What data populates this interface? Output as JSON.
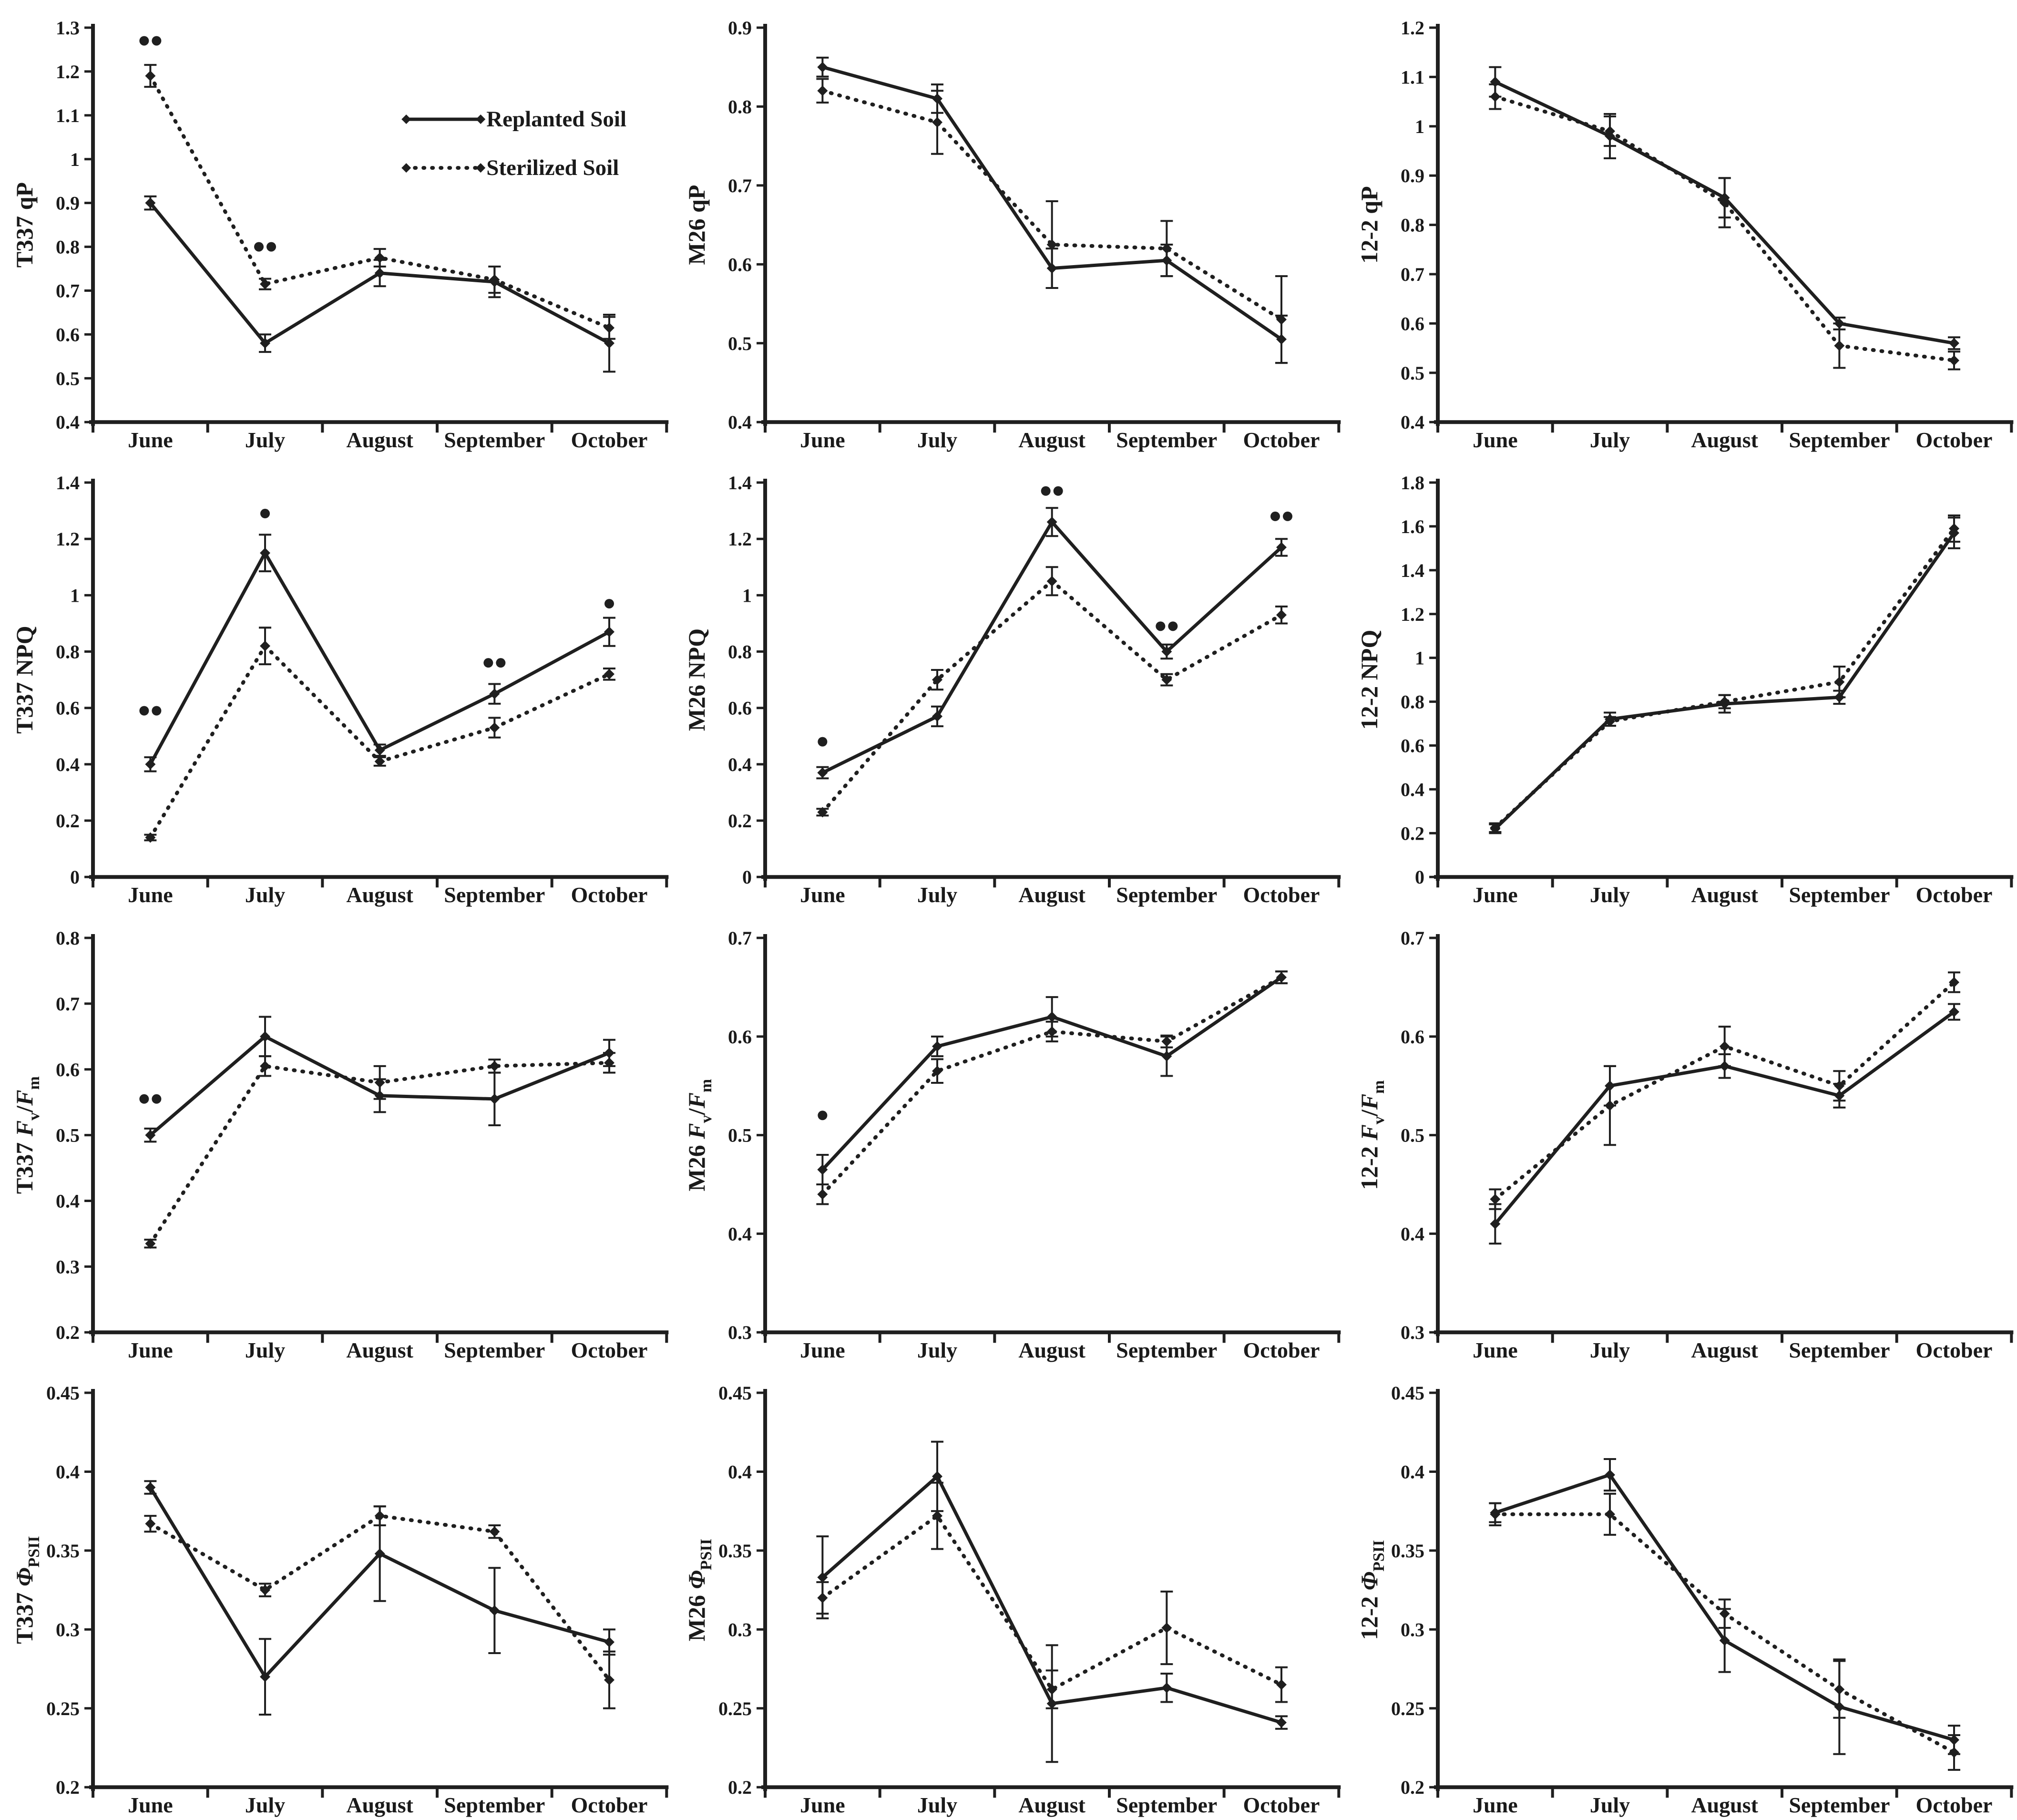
{
  "figure": {
    "background": "#ffffff",
    "ink_color": "#1f1f1f",
    "months": [
      "June",
      "July",
      "August",
      "September",
      "October"
    ],
    "legend": {
      "items": [
        {
          "label": "Replanted Soil",
          "line": "solid"
        },
        {
          "label": "Sterilized Soil",
          "line": "dashed"
        }
      ]
    }
  },
  "chart_data": [
    {
      "id": "t337-qp",
      "type": "line",
      "ylabel_prefix": "T337",
      "ylabel_param": "qP",
      "ylim": [
        0.4,
        1.3
      ],
      "ystep": 0.1,
      "grid": false,
      "legend_position": "upper-right",
      "categories": [
        "June",
        "July",
        "August",
        "September",
        "October"
      ],
      "series": [
        {
          "name": "Replanted Soil",
          "line": "solid",
          "values": [
            0.9,
            0.58,
            0.74,
            0.72,
            0.58
          ],
          "errors": [
            0.015,
            0.02,
            0.03,
            0.035,
            0.065
          ]
        },
        {
          "name": "Sterilized Soil",
          "line": "dashed",
          "values": [
            1.19,
            0.715,
            0.775,
            0.725,
            0.615
          ],
          "errors": [
            0.025,
            0.012,
            0.02,
            0.03,
            0.025
          ]
        }
      ],
      "significance": [
        {
          "month_index": 0,
          "stars": 2,
          "y": 1.27
        },
        {
          "month_index": 1,
          "stars": 2,
          "y": 0.8
        }
      ],
      "show_legend": true
    },
    {
      "id": "m26-qp",
      "type": "line",
      "ylabel_prefix": "M26",
      "ylabel_param": "qP",
      "ylim": [
        0.4,
        0.9
      ],
      "ystep": 0.1,
      "grid": false,
      "categories": [
        "June",
        "July",
        "August",
        "September",
        "October"
      ],
      "series": [
        {
          "name": "Replanted Soil",
          "line": "solid",
          "values": [
            0.85,
            0.81,
            0.595,
            0.605,
            0.505
          ],
          "errors": [
            0.012,
            0.018,
            0.025,
            0.02,
            0.03
          ]
        },
        {
          "name": "Sterilized Soil",
          "line": "dashed",
          "values": [
            0.82,
            0.78,
            0.625,
            0.62,
            0.53
          ],
          "errors": [
            0.015,
            0.04,
            0.055,
            0.035,
            0.055
          ]
        }
      ],
      "significance": [],
      "show_legend": false
    },
    {
      "id": "12-2-qp",
      "type": "line",
      "ylabel_prefix": "12-2",
      "ylabel_param": "qP",
      "ylim": [
        0.4,
        1.2
      ],
      "ystep": 0.1,
      "grid": false,
      "categories": [
        "June",
        "July",
        "August",
        "September",
        "October"
      ],
      "series": [
        {
          "name": "Replanted Soil",
          "line": "solid",
          "values": [
            1.09,
            0.98,
            0.855,
            0.6,
            0.56
          ],
          "errors": [
            0.03,
            0.045,
            0.04,
            0.012,
            0.012
          ]
        },
        {
          "name": "Sterilized Soil",
          "line": "dashed",
          "values": [
            1.06,
            0.99,
            0.845,
            0.555,
            0.525
          ],
          "errors": [
            0.025,
            0.03,
            0.05,
            0.045,
            0.018
          ]
        }
      ],
      "significance": [],
      "show_legend": false
    },
    {
      "id": "t337-npq",
      "type": "line",
      "ylabel_prefix": "T337",
      "ylabel_param": "NPQ",
      "ylim": [
        0,
        1.4
      ],
      "ystep": 0.2,
      "grid": false,
      "categories": [
        "June",
        "July",
        "August",
        "September",
        "October"
      ],
      "series": [
        {
          "name": "Replanted Soil",
          "line": "solid",
          "values": [
            0.4,
            1.15,
            0.45,
            0.65,
            0.87
          ],
          "errors": [
            0.025,
            0.065,
            0.02,
            0.035,
            0.05
          ]
        },
        {
          "name": "Sterilized Soil",
          "line": "dashed",
          "values": [
            0.14,
            0.82,
            0.41,
            0.53,
            0.72
          ],
          "errors": [
            0.01,
            0.065,
            0.015,
            0.035,
            0.02
          ]
        }
      ],
      "significance": [
        {
          "month_index": 0,
          "stars": 2,
          "y": 0.59
        },
        {
          "month_index": 1,
          "stars": 1,
          "y": 1.29
        },
        {
          "month_index": 3,
          "stars": 2,
          "y": 0.76
        },
        {
          "month_index": 4,
          "stars": 1,
          "y": 0.97
        }
      ],
      "show_legend": false
    },
    {
      "id": "m26-npq",
      "type": "line",
      "ylabel_prefix": "M26",
      "ylabel_param": "NPQ",
      "ylim": [
        0,
        1.4
      ],
      "ystep": 0.2,
      "grid": false,
      "categories": [
        "June",
        "July",
        "August",
        "September",
        "October"
      ],
      "series": [
        {
          "name": "Replanted Soil",
          "line": "solid",
          "values": [
            0.37,
            0.57,
            1.26,
            0.8,
            1.17
          ],
          "errors": [
            0.02,
            0.035,
            0.05,
            0.025,
            0.03
          ]
        },
        {
          "name": "Sterilized Soil",
          "line": "dashed",
          "values": [
            0.23,
            0.7,
            1.05,
            0.7,
            0.93
          ],
          "errors": [
            0.012,
            0.035,
            0.05,
            0.02,
            0.03
          ]
        }
      ],
      "significance": [
        {
          "month_index": 0,
          "stars": 1,
          "y": 0.48
        },
        {
          "month_index": 2,
          "stars": 2,
          "y": 1.37
        },
        {
          "month_index": 3,
          "stars": 2,
          "y": 0.89
        },
        {
          "month_index": 4,
          "stars": 2,
          "y": 1.28
        }
      ],
      "show_legend": false
    },
    {
      "id": "12-2-npq",
      "type": "line",
      "ylabel_prefix": "12-2",
      "ylabel_param": "NPQ",
      "ylim": [
        0,
        1.8
      ],
      "ystep": 0.2,
      "grid": false,
      "categories": [
        "June",
        "July",
        "August",
        "September",
        "October"
      ],
      "series": [
        {
          "name": "Replanted Soil",
          "line": "solid",
          "values": [
            0.22,
            0.72,
            0.79,
            0.82,
            1.57
          ],
          "errors": [
            0.02,
            0.03,
            0.04,
            0.03,
            0.07
          ]
        },
        {
          "name": "Sterilized Soil",
          "line": "dashed",
          "values": [
            0.225,
            0.71,
            0.8,
            0.89,
            1.59
          ],
          "errors": [
            0.02,
            0.02,
            0.03,
            0.07,
            0.06
          ]
        }
      ],
      "significance": [],
      "show_legend": false
    },
    {
      "id": "t337-fvfm",
      "type": "line",
      "ylabel_prefix": "T337",
      "ylabel_param": "FvFm",
      "ylim": [
        0.2,
        0.8
      ],
      "ystep": 0.1,
      "grid": false,
      "categories": [
        "June",
        "July",
        "August",
        "September",
        "October"
      ],
      "series": [
        {
          "name": "Replanted Soil",
          "line": "solid",
          "values": [
            0.5,
            0.65,
            0.56,
            0.555,
            0.625
          ],
          "errors": [
            0.01,
            0.03,
            0.025,
            0.04,
            0.02
          ]
        },
        {
          "name": "Sterilized Soil",
          "line": "dashed",
          "values": [
            0.335,
            0.605,
            0.58,
            0.605,
            0.61
          ],
          "errors": [
            0.006,
            0.015,
            0.025,
            0.01,
            0.015
          ]
        }
      ],
      "significance": [
        {
          "month_index": 0,
          "stars": 2,
          "y": 0.555
        }
      ],
      "show_legend": false
    },
    {
      "id": "m26-fvfm",
      "type": "line",
      "ylabel_prefix": "M26",
      "ylabel_param": "FvFm",
      "ylim": [
        0.3,
        0.7
      ],
      "ystep": 0.1,
      "grid": false,
      "categories": [
        "June",
        "July",
        "August",
        "September",
        "October"
      ],
      "series": [
        {
          "name": "Replanted Soil",
          "line": "solid",
          "values": [
            0.465,
            0.59,
            0.62,
            0.58,
            0.66
          ],
          "errors": [
            0.015,
            0.01,
            0.02,
            0.02,
            0.006
          ]
        },
        {
          "name": "Sterilized Soil",
          "line": "dashed",
          "values": [
            0.44,
            0.565,
            0.605,
            0.595,
            0.66
          ],
          "errors": [
            0.01,
            0.012,
            0.01,
            0.006,
            0.006
          ]
        }
      ],
      "significance": [
        {
          "month_index": 0,
          "stars": 1,
          "y": 0.52
        }
      ],
      "show_legend": false
    },
    {
      "id": "12-2-fvfm",
      "type": "line",
      "ylabel_prefix": "12-2",
      "ylabel_param": "FvFm",
      "ylim": [
        0.3,
        0.7
      ],
      "ystep": 0.1,
      "grid": false,
      "categories": [
        "June",
        "July",
        "August",
        "September",
        "October"
      ],
      "series": [
        {
          "name": "Replanted Soil",
          "line": "solid",
          "values": [
            0.41,
            0.55,
            0.57,
            0.54,
            0.625
          ],
          "errors": [
            0.02,
            0.02,
            0.012,
            0.012,
            0.008
          ]
        },
        {
          "name": "Sterilized Soil",
          "line": "dashed",
          "values": [
            0.435,
            0.53,
            0.59,
            0.55,
            0.655
          ],
          "errors": [
            0.01,
            0.04,
            0.02,
            0.015,
            0.01
          ]
        }
      ],
      "significance": [],
      "show_legend": false
    },
    {
      "id": "t337-phipsii",
      "type": "line",
      "ylabel_prefix": "T337",
      "ylabel_param": "PhiPSII",
      "ylim": [
        0.2,
        0.45
      ],
      "ystep": 0.05,
      "grid": false,
      "categories": [
        "June",
        "July",
        "August",
        "September",
        "October"
      ],
      "series": [
        {
          "name": "Replanted Soil",
          "line": "solid",
          "values": [
            0.39,
            0.27,
            0.348,
            0.312,
            0.292
          ],
          "errors": [
            0.004,
            0.024,
            0.03,
            0.027,
            0.008
          ]
        },
        {
          "name": "Sterilized Soil",
          "line": "dashed",
          "values": [
            0.367,
            0.325,
            0.372,
            0.362,
            0.268
          ],
          "errors": [
            0.005,
            0.004,
            0.006,
            0.004,
            0.018
          ]
        }
      ],
      "significance": [],
      "show_legend": false
    },
    {
      "id": "m26-phipsii",
      "type": "line",
      "ylabel_prefix": "M26",
      "ylabel_param": "PhiPSII",
      "ylim": [
        0.2,
        0.45
      ],
      "ystep": 0.05,
      "grid": false,
      "categories": [
        "June",
        "July",
        "August",
        "September",
        "October"
      ],
      "series": [
        {
          "name": "Replanted Soil",
          "line": "solid",
          "values": [
            0.333,
            0.397,
            0.253,
            0.263,
            0.241
          ],
          "errors": [
            0.026,
            0.022,
            0.037,
            0.009,
            0.004
          ]
        },
        {
          "name": "Sterilized Soil",
          "line": "dashed",
          "values": [
            0.32,
            0.372,
            0.262,
            0.301,
            0.265
          ],
          "errors": [
            0.01,
            0.021,
            0.012,
            0.023,
            0.011
          ]
        }
      ],
      "significance": [],
      "show_legend": false
    },
    {
      "id": "12-2-phipsii",
      "type": "line",
      "ylabel_prefix": "12-2",
      "ylabel_param": "PhiPSII",
      "ylim": [
        0.2,
        0.45
      ],
      "ystep": 0.05,
      "grid": false,
      "categories": [
        "June",
        "July",
        "August",
        "September",
        "October"
      ],
      "series": [
        {
          "name": "Replanted Soil",
          "line": "solid",
          "values": [
            0.374,
            0.398,
            0.293,
            0.251,
            0.23
          ],
          "errors": [
            0.006,
            0.01,
            0.02,
            0.03,
            0.009
          ]
        },
        {
          "name": "Sterilized Soil",
          "line": "dashed",
          "values": [
            0.373,
            0.373,
            0.31,
            0.262,
            0.222
          ],
          "errors": [
            0.007,
            0.013,
            0.009,
            0.018,
            0.011
          ]
        }
      ],
      "significance": [],
      "show_legend": false
    }
  ]
}
